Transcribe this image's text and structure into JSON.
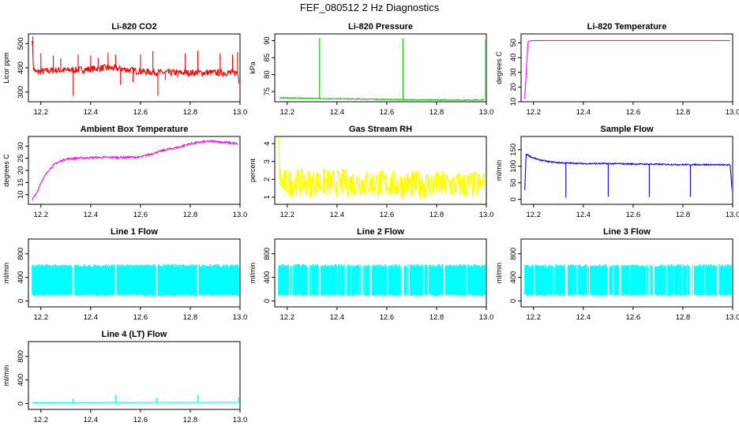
{
  "figure_title": "FEF_080512  2 Hz Diagnostics",
  "chart_data": [
    {
      "type": "line",
      "title": "Li-820 CO2",
      "ylabel": "Licor ppm",
      "color": "#ff0000",
      "xlim": [
        12.15,
        13.0
      ],
      "ylim": [
        260,
        540
      ],
      "xticks": [
        "12.2",
        "12.4",
        "12.6",
        "12.8",
        "13.0"
      ],
      "xtick_values": [
        12.2,
        12.4,
        12.6,
        12.8,
        13.0
      ],
      "yticks": [
        "300",
        "400",
        "500"
      ],
      "ytick_values": [
        300,
        400,
        500
      ],
      "x": [
        12.165,
        12.17,
        12.18,
        12.2,
        12.25,
        12.3,
        12.35,
        12.4,
        12.45,
        12.5,
        12.55,
        12.6,
        12.65,
        12.7,
        12.75,
        12.8,
        12.85,
        12.9,
        12.95,
        12.99,
        13.0
      ],
      "y": [
        525,
        400,
        382,
        385,
        390,
        390,
        392,
        395,
        400,
        398,
        392,
        385,
        382,
        380,
        380,
        380,
        380,
        380,
        380,
        380,
        335
      ],
      "noise": 14,
      "spikes": [
        {
          "x": 12.168,
          "y": 530
        },
        {
          "x": 12.2,
          "y": 460
        },
        {
          "x": 12.25,
          "y": 450
        },
        {
          "x": 12.28,
          "y": 440
        },
        {
          "x": 12.33,
          "y": 285
        },
        {
          "x": 12.35,
          "y": 455
        },
        {
          "x": 12.4,
          "y": 450
        },
        {
          "x": 12.43,
          "y": 440
        },
        {
          "x": 12.47,
          "y": 462
        },
        {
          "x": 12.5,
          "y": 455
        },
        {
          "x": 12.52,
          "y": 330
        },
        {
          "x": 12.57,
          "y": 340
        },
        {
          "x": 12.6,
          "y": 455
        },
        {
          "x": 12.65,
          "y": 470
        },
        {
          "x": 12.67,
          "y": 285
        },
        {
          "x": 12.7,
          "y": 350
        },
        {
          "x": 12.75,
          "y": 360
        },
        {
          "x": 12.78,
          "y": 460
        },
        {
          "x": 12.83,
          "y": 470
        },
        {
          "x": 12.92,
          "y": 460
        },
        {
          "x": 12.97,
          "y": 455
        },
        {
          "x": 12.99,
          "y": 465
        }
      ]
    },
    {
      "type": "line",
      "title": "Li-820 Pressure",
      "ylabel": "kPa",
      "color": "#00c000",
      "xlim": [
        12.15,
        13.0
      ],
      "ylim": [
        72,
        92
      ],
      "xticks": [
        "12.2",
        "12.4",
        "12.6",
        "12.8",
        "13.0"
      ],
      "xtick_values": [
        12.2,
        12.4,
        12.6,
        12.8,
        13.0
      ],
      "yticks": [
        "75",
        "80",
        "85",
        "90"
      ],
      "ytick_values": [
        75,
        80,
        85,
        90
      ],
      "x": [
        12.17,
        12.3,
        12.5,
        12.7,
        12.9,
        12.99
      ],
      "y": [
        73.2,
        73.0,
        72.8,
        72.6,
        72.5,
        72.5
      ],
      "noise": 0.1,
      "spikes": [
        {
          "x": 12.33,
          "y": 90.8
        },
        {
          "x": 12.665,
          "y": 90.6
        },
        {
          "x": 12.997,
          "y": 90.4
        }
      ]
    },
    {
      "type": "line",
      "title": "Li-820 Temperature",
      "ylabel": "degrees C",
      "color": "#ff00ff",
      "xlim": [
        12.15,
        13.0
      ],
      "ylim": [
        10,
        56
      ],
      "xticks": [
        "12.2",
        "12.4",
        "12.6",
        "12.8",
        "13.0"
      ],
      "xtick_values": [
        12.2,
        12.4,
        12.6,
        12.8,
        13.0
      ],
      "yticks": [
        "10",
        "20",
        "30",
        "40",
        "50"
      ],
      "ytick_values": [
        10,
        20,
        30,
        40,
        50
      ],
      "x": [
        12.165,
        12.172,
        12.178,
        12.2,
        12.5,
        12.8,
        12.99
      ],
      "y": [
        12,
        35,
        51,
        51.5,
        51.5,
        51.5,
        51.5
      ],
      "noise": 0
    },
    {
      "type": "line",
      "title": "Ambient Box Temperature",
      "ylabel": "degrees C",
      "color": "#ff00ff",
      "xlim": [
        12.15,
        13.0
      ],
      "ylim": [
        6,
        34
      ],
      "xticks": [
        "12.2",
        "12.4",
        "12.6",
        "12.8",
        "13.0"
      ],
      "xtick_values": [
        12.2,
        12.4,
        12.6,
        12.8,
        13.0
      ],
      "yticks": [
        "10",
        "15",
        "20",
        "25",
        "30"
      ],
      "ytick_values": [
        10,
        15,
        20,
        25,
        30
      ],
      "x": [
        12.165,
        12.18,
        12.2,
        12.23,
        12.26,
        12.3,
        12.35,
        12.4,
        12.5,
        12.55,
        12.6,
        12.65,
        12.7,
        12.75,
        12.8,
        12.85,
        12.9,
        12.95,
        12.99
      ],
      "y": [
        8,
        10,
        15,
        20,
        23,
        24.7,
        25.1,
        25.3,
        25.4,
        25.4,
        25.5,
        27,
        28.5,
        29.5,
        31,
        31.8,
        32,
        31.5,
        31
      ],
      "noise": 0.4
    },
    {
      "type": "line",
      "title": "Gas Stream RH",
      "ylabel": "percent",
      "color": "#ffff00",
      "xlim": [
        12.15,
        13.0
      ],
      "ylim": [
        0.6,
        4.4
      ],
      "xticks": [
        "12.2",
        "12.4",
        "12.6",
        "12.8",
        "13.0"
      ],
      "xtick_values": [
        12.2,
        12.4,
        12.6,
        12.8,
        13.0
      ],
      "yticks": [
        "1",
        "2",
        "3",
        "4"
      ],
      "ytick_values": [
        1,
        2,
        3,
        4
      ],
      "x": [
        12.165,
        12.17,
        12.18,
        12.3,
        12.5,
        12.7,
        12.9,
        12.99
      ],
      "y": [
        4.2,
        2.2,
        1.8,
        1.8,
        1.8,
        1.7,
        1.7,
        1.7
      ],
      "noise": 0.8
    },
    {
      "type": "line",
      "title": "Sample Flow",
      "ylabel": "ml/min",
      "color": "#0000ff",
      "xlim": [
        12.15,
        13.0
      ],
      "ylim": [
        -15,
        190
      ],
      "xticks": [
        "12.2",
        "12.4",
        "12.6",
        "12.8",
        "13.0"
      ],
      "xtick_values": [
        12.2,
        12.4,
        12.6,
        12.8,
        13.0
      ],
      "yticks": [
        "0",
        "50",
        "100",
        "150"
      ],
      "ytick_values": [
        0,
        50,
        100,
        150
      ],
      "x": [
        12.165,
        12.17,
        12.19,
        12.22,
        12.26,
        12.3,
        12.4,
        12.5,
        12.6,
        12.7,
        12.8,
        12.9,
        12.99,
        13.0
      ],
      "y": [
        30,
        138,
        128,
        120,
        114,
        111,
        108,
        108,
        107,
        106,
        105,
        105,
        104,
        5
      ],
      "noise": 2,
      "spikes": [
        {
          "x": 12.33,
          "y": 5
        },
        {
          "x": 12.5,
          "y": 8
        },
        {
          "x": 12.665,
          "y": 7
        },
        {
          "x": 12.83,
          "y": 8
        }
      ]
    },
    {
      "type": "line",
      "title": "Line 1 Flow",
      "ylabel": "ml/min",
      "color": "#00ffff",
      "xlim": [
        12.15,
        13.0
      ],
      "ylim": [
        -100,
        1050
      ],
      "xticks": [
        "12.2",
        "12.4",
        "12.6",
        "12.8",
        "13.0"
      ],
      "xtick_values": [
        12.2,
        12.4,
        12.6,
        12.8,
        13.0
      ],
      "yticks": [
        "0",
        "400",
        "800"
      ],
      "ytick_values": [
        0,
        400,
        800
      ],
      "band": [
        110,
        600
      ],
      "gaps": [
        12.33,
        12.5,
        12.665,
        12.83
      ]
    },
    {
      "type": "line",
      "title": "Line 2 Flow",
      "ylabel": "ml/min",
      "color": "#00ffff",
      "xlim": [
        12.15,
        13.0
      ],
      "ylim": [
        -100,
        1050
      ],
      "xticks": [
        "12.2",
        "12.4",
        "12.6",
        "12.8",
        "13.0"
      ],
      "xtick_values": [
        12.2,
        12.4,
        12.6,
        12.8,
        13.0
      ],
      "yticks": [
        "0",
        "400",
        "800"
      ],
      "ytick_values": [
        0,
        400,
        800
      ],
      "band": [
        110,
        600
      ],
      "gaps": [
        12.33,
        12.5,
        12.665,
        12.83
      ]
    },
    {
      "type": "line",
      "title": "Line 3 Flow",
      "ylabel": "ml/min",
      "color": "#00ffff",
      "xlim": [
        12.15,
        13.0
      ],
      "ylim": [
        -100,
        1050
      ],
      "xticks": [
        "12.2",
        "12.4",
        "12.6",
        "12.8",
        "13.0"
      ],
      "xtick_values": [
        12.2,
        12.4,
        12.6,
        12.8,
        13.0
      ],
      "yticks": [
        "0",
        "400",
        "800"
      ],
      "ytick_values": [
        0,
        400,
        800
      ],
      "band": [
        110,
        600
      ],
      "gaps": [
        12.33,
        12.5,
        12.665,
        12.83
      ]
    },
    {
      "type": "line",
      "title": "Line 4 (LT) Flow",
      "ylabel": "ml/min",
      "color": "#00ffff",
      "xlim": [
        12.15,
        13.0
      ],
      "ylim": [
        -100,
        1050
      ],
      "xticks": [
        "12.2",
        "12.4",
        "12.6",
        "12.8",
        "13.0"
      ],
      "xtick_values": [
        12.2,
        12.4,
        12.6,
        12.8,
        13.0
      ],
      "yticks": [
        "0",
        "400",
        "800"
      ],
      "ytick_values": [
        0,
        400,
        800
      ],
      "x": [
        12.165,
        12.5,
        12.99
      ],
      "y": [
        15,
        18,
        20
      ],
      "noise": 3,
      "spikes": [
        {
          "x": 12.33,
          "y": 90
        },
        {
          "x": 12.5,
          "y": 150
        },
        {
          "x": 12.665,
          "y": 100
        },
        {
          "x": 12.83,
          "y": 150
        },
        {
          "x": 12.995,
          "y": 110
        }
      ]
    }
  ]
}
